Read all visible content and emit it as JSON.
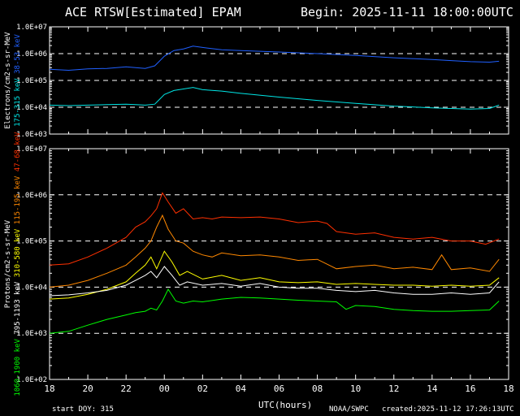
{
  "header": {
    "title": "ACE RTSW[Estimated] EPAM",
    "begin": "Begin: 2025-11-11 18:00:00UTC"
  },
  "footer": {
    "start_doy": "start DOY: 315",
    "source": "NOAA/SWPC",
    "created": "created:2025-11-12 17:26:13UTC"
  },
  "chart_data": [
    {
      "type": "line",
      "panel": "electrons",
      "ylabel_parts": [
        {
          "text": "Electrons/cm2-s-sr-MeV",
          "color": "#ffffff"
        },
        {
          "text": "175-315 keV",
          "color": "#00e5e5"
        },
        {
          "text": "38-53 keV",
          "color": "#2060ff"
        }
      ],
      "ylim": [
        1000,
        10000000
      ],
      "yscale": "log",
      "ytick_labels": [
        "1.0E+03",
        "1.0E+04",
        "1.0E+05",
        "1.0E+06",
        "1.0E+07"
      ],
      "dashed_levels": [
        10000,
        100000,
        1000000
      ],
      "xlim": [
        18,
        42
      ],
      "series": [
        {
          "name": "38-53 keV",
          "color": "#2060ff",
          "x": [
            18,
            19,
            20,
            21,
            22,
            22.5,
            23,
            23.5,
            24,
            24.5,
            25,
            25.5,
            26,
            27,
            28,
            30,
            32,
            34,
            36,
            38,
            39,
            40,
            41,
            41.5
          ],
          "y": [
            260000,
            240000,
            270000,
            280000,
            320000,
            300000,
            280000,
            350000,
            800000,
            1300000,
            1500000,
            1900000,
            1700000,
            1400000,
            1300000,
            1150000,
            1000000,
            850000,
            700000,
            600000,
            550000,
            500000,
            480000,
            520000
          ]
        },
        {
          "name": "175-315 keV",
          "color": "#00e5e5",
          "x": [
            18,
            19,
            20,
            21,
            22,
            22.5,
            23,
            23.5,
            24,
            24.5,
            25,
            25.5,
            26,
            27,
            28,
            30,
            32,
            34,
            36,
            38,
            39,
            40,
            41,
            41.5
          ],
          "y": [
            12000,
            11500,
            12000,
            12500,
            13000,
            12500,
            12000,
            13000,
            30000,
            42000,
            48000,
            55000,
            45000,
            40000,
            33000,
            24000,
            18000,
            14000,
            11000,
            9500,
            9000,
            8500,
            9000,
            12000
          ]
        }
      ]
    },
    {
      "type": "line",
      "panel": "protons",
      "ylabel_parts": [
        {
          "text": "Protons/cm2-s-sr-MeV",
          "color": "#ffffff"
        },
        {
          "text": "795-1193 keV",
          "color": "#ffffff"
        },
        {
          "text": "310-580 keV",
          "color": "#ffff00"
        },
        {
          "text": "115-195 keV",
          "color": "#ff8800"
        },
        {
          "text": "47-68 keV",
          "color": "#ff3000"
        },
        {
          "text": "1060-1900 keV",
          "color": "#00ff00"
        }
      ],
      "ylim": [
        100,
        10000000
      ],
      "yscale": "log",
      "ytick_labels": [
        "1.0E+02",
        "1.0E+03",
        "1.0E+04",
        "1.0E+05",
        "1.0E+06",
        "1.0E+07"
      ],
      "dashed_levels": [
        1000,
        10000,
        100000,
        1000000
      ],
      "xlim": [
        18,
        42
      ],
      "x_ticks": [
        18,
        20,
        22,
        24,
        26,
        28,
        30,
        32,
        34,
        36,
        38,
        40,
        42
      ],
      "x_tick_labels": [
        "18",
        "20",
        "22",
        "00",
        "02",
        "04",
        "06",
        "08",
        "10",
        "12",
        "14",
        "16",
        "18"
      ],
      "xlabel": "UTC(hours)",
      "series": [
        {
          "name": "47-68 keV",
          "color": "#ff3000",
          "x": [
            18,
            19,
            20,
            21,
            22,
            22.5,
            23,
            23.3,
            23.6,
            23.9,
            24.2,
            24.6,
            25,
            25.5,
            26,
            26.5,
            27,
            28,
            29,
            30,
            31,
            32,
            32.5,
            33,
            34,
            35,
            36,
            37,
            38,
            39,
            40,
            40.8,
            41.5
          ],
          "y": [
            30000,
            32000,
            45000,
            70000,
            120000,
            200000,
            260000,
            350000,
            500000,
            1100000,
            700000,
            400000,
            500000,
            300000,
            320000,
            300000,
            330000,
            320000,
            330000,
            300000,
            250000,
            270000,
            240000,
            160000,
            140000,
            150000,
            120000,
            110000,
            120000,
            100000,
            100000,
            85000,
            110000
          ]
        },
        {
          "name": "115-195 keV",
          "color": "#ff8800",
          "x": [
            18,
            19,
            20,
            21,
            22,
            22.5,
            23,
            23.3,
            23.6,
            23.9,
            24.2,
            24.6,
            25,
            25.5,
            26,
            26.5,
            27,
            28,
            29,
            30,
            31,
            32,
            33,
            34,
            35,
            36,
            37,
            38,
            38.5,
            39,
            40,
            41,
            41.5
          ],
          "y": [
            10000,
            11000,
            14000,
            20000,
            30000,
            45000,
            70000,
            100000,
            200000,
            360000,
            180000,
            100000,
            90000,
            60000,
            50000,
            45000,
            55000,
            48000,
            50000,
            45000,
            38000,
            40000,
            25000,
            28000,
            30000,
            25000,
            27000,
            24000,
            50000,
            24000,
            26000,
            22000,
            40000
          ]
        },
        {
          "name": "310-580 keV",
          "color": "#ffff00",
          "x": [
            18,
            19,
            20,
            21,
            22,
            22.5,
            23,
            23.3,
            23.6,
            24,
            24.4,
            24.8,
            25.2,
            26,
            27,
            28,
            29,
            30,
            31,
            32,
            33,
            34,
            35,
            36,
            37,
            38,
            39,
            40,
            41,
            41.5
          ],
          "y": [
            5500,
            5800,
            7000,
            9000,
            13000,
            20000,
            30000,
            45000,
            25000,
            60000,
            35000,
            18000,
            22000,
            15000,
            18000,
            14000,
            16000,
            13000,
            12500,
            13000,
            11500,
            12000,
            11500,
            11000,
            11000,
            10500,
            11000,
            10500,
            11000,
            16000
          ]
        },
        {
          "name": "795-1193 keV",
          "color": "#ffffff",
          "x": [
            18,
            19,
            20,
            21,
            22,
            22.5,
            23,
            23.3,
            23.6,
            24,
            24.4,
            24.8,
            25.2,
            26,
            27,
            28,
            29,
            30,
            31,
            32,
            33,
            34,
            35,
            36,
            37,
            38,
            39,
            40,
            41,
            41.5
          ],
          "y": [
            6500,
            6800,
            7500,
            8500,
            11000,
            14000,
            18000,
            22000,
            16000,
            28000,
            18000,
            11000,
            13000,
            11000,
            12000,
            10500,
            12000,
            10000,
            9500,
            9500,
            8500,
            8000,
            8500,
            7500,
            7000,
            7000,
            7500,
            7000,
            7500,
            13000
          ]
        },
        {
          "name": "1060-1900 keV",
          "color": "#00ff00",
          "x": [
            18,
            19,
            20,
            21,
            22,
            22.5,
            23,
            23.3,
            23.6,
            23.9,
            24.2,
            24.6,
            25,
            25.5,
            26,
            27,
            28,
            29,
            30,
            31,
            32,
            33,
            33.5,
            34,
            35,
            36,
            37,
            38,
            39,
            40,
            41,
            41.5
          ],
          "y": [
            1000,
            1100,
            1500,
            2000,
            2500,
            2800,
            3000,
            3500,
            3200,
            5000,
            9000,
            5000,
            4500,
            5000,
            4800,
            5500,
            6000,
            5800,
            5500,
            5200,
            5000,
            4800,
            3300,
            4000,
            3800,
            3300,
            3100,
            3000,
            3000,
            3100,
            3200,
            5000
          ]
        }
      ]
    }
  ]
}
